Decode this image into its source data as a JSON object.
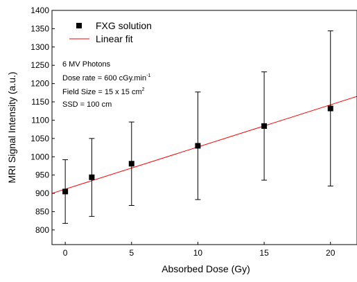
{
  "chart_data": {
    "type": "scatter",
    "xlabel": "Absorbed Dose (Gy)",
    "ylabel": "MRI Signal Intensity (a.u.)",
    "xlim": [
      -1,
      22
    ],
    "ylim": [
      760,
      1400
    ],
    "x_ticks": [
      0,
      5,
      10,
      15,
      20
    ],
    "x_tick_labels": [
      "0",
      "5",
      "10",
      "15",
      "20"
    ],
    "y_ticks": [
      800,
      850,
      900,
      950,
      1000,
      1050,
      1100,
      1150,
      1200,
      1250,
      1300,
      1350,
      1400
    ],
    "y_tick_labels": [
      "800",
      "850",
      "900",
      "950",
      "1000",
      "1050",
      "1100",
      "1150",
      "1200",
      "1250",
      "1300",
      "1350",
      "1400"
    ],
    "grid": false,
    "legend_position": "top-left",
    "series": [
      {
        "name": "FXG solution",
        "kind": "points",
        "marker": "square",
        "color": "#000000",
        "points": [
          {
            "x": 0,
            "y": 905,
            "err_low": 818,
            "err_high": 992
          },
          {
            "x": 2,
            "y": 944,
            "err_low": 837,
            "err_high": 1050
          },
          {
            "x": 5,
            "y": 981,
            "err_low": 867,
            "err_high": 1095
          },
          {
            "x": 10,
            "y": 1030,
            "err_low": 883,
            "err_high": 1177
          },
          {
            "x": 15,
            "y": 1084,
            "err_low": 936,
            "err_high": 1232
          },
          {
            "x": 20,
            "y": 1132,
            "err_low": 920,
            "err_high": 1344
          }
        ]
      },
      {
        "name": "Linear fit",
        "kind": "line",
        "color": "#ff0000",
        "x": [
          -1,
          22
        ],
        "y": [
          900,
          1165
        ]
      }
    ],
    "annotations": {
      "line1": "6 MV Photons",
      "line2_base": "Dose rate = 600 cGy.min",
      "line2_sup": "-1",
      "line3_base": "Field Size = 15 x 15 cm",
      "line3_sup": "2",
      "line4": "SSD = 100 cm"
    }
  }
}
